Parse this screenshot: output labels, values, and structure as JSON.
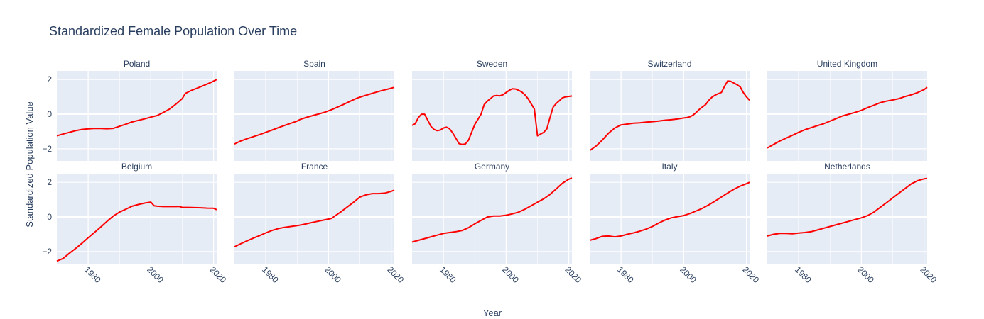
{
  "chart_data": {
    "type": "line",
    "title": "Standardized Female Population Over Time",
    "xlabel": "Year",
    "ylabel": "Standardized Population Value",
    "xlim": [
      1970,
      2021
    ],
    "ylim": [
      -2.7,
      2.5
    ],
    "x_ticks": [
      1980,
      2000,
      2020
    ],
    "y_ticks": [
      -2,
      0,
      2
    ],
    "grid": true,
    "line_color": "#ff0000",
    "plot_bg": "#e5ecf6",
    "subplots": [
      {
        "name": "Poland",
        "points": [
          [
            1970,
            -1.25
          ],
          [
            1972,
            -1.15
          ],
          [
            1974,
            -1.05
          ],
          [
            1976,
            -0.95
          ],
          [
            1978,
            -0.88
          ],
          [
            1980,
            -0.85
          ],
          [
            1982,
            -0.82
          ],
          [
            1984,
            -0.83
          ],
          [
            1986,
            -0.84
          ],
          [
            1988,
            -0.82
          ],
          [
            1990,
            -0.7
          ],
          [
            1992,
            -0.58
          ],
          [
            1994,
            -0.45
          ],
          [
            1996,
            -0.36
          ],
          [
            1998,
            -0.27
          ],
          [
            2000,
            -0.17
          ],
          [
            2002,
            -0.08
          ],
          [
            2004,
            0.1
          ],
          [
            2006,
            0.3
          ],
          [
            2008,
            0.58
          ],
          [
            2010,
            0.9
          ],
          [
            2011,
            1.2
          ],
          [
            2013,
            1.38
          ],
          [
            2015,
            1.52
          ],
          [
            2017,
            1.67
          ],
          [
            2019,
            1.82
          ],
          [
            2021,
            2.0
          ]
        ]
      },
      {
        "name": "Spain",
        "points": [
          [
            1970,
            -1.72
          ],
          [
            1972,
            -1.55
          ],
          [
            1974,
            -1.42
          ],
          [
            1976,
            -1.3
          ],
          [
            1978,
            -1.18
          ],
          [
            1980,
            -1.05
          ],
          [
            1982,
            -0.92
          ],
          [
            1984,
            -0.78
          ],
          [
            1986,
            -0.65
          ],
          [
            1988,
            -0.52
          ],
          [
            1990,
            -0.4
          ],
          [
            1991,
            -0.3
          ],
          [
            1993,
            -0.18
          ],
          [
            1995,
            -0.08
          ],
          [
            1997,
            0.02
          ],
          [
            1999,
            0.12
          ],
          [
            2001,
            0.26
          ],
          [
            2003,
            0.42
          ],
          [
            2005,
            0.58
          ],
          [
            2007,
            0.75
          ],
          [
            2009,
            0.92
          ],
          [
            2011,
            1.04
          ],
          [
            2013,
            1.15
          ],
          [
            2015,
            1.26
          ],
          [
            2017,
            1.36
          ],
          [
            2019,
            1.45
          ],
          [
            2021,
            1.55
          ]
        ]
      },
      {
        "name": "Sweden",
        "points": [
          [
            1970,
            -0.65
          ],
          [
            1971,
            -0.55
          ],
          [
            1972,
            -0.2
          ],
          [
            1973,
            0.0
          ],
          [
            1974,
            0.0
          ],
          [
            1975,
            -0.35
          ],
          [
            1976,
            -0.7
          ],
          [
            1977,
            -0.88
          ],
          [
            1978,
            -0.95
          ],
          [
            1979,
            -0.92
          ],
          [
            1980,
            -0.8
          ],
          [
            1981,
            -0.75
          ],
          [
            1982,
            -0.85
          ],
          [
            1983,
            -1.1
          ],
          [
            1984,
            -1.4
          ],
          [
            1985,
            -1.7
          ],
          [
            1986,
            -1.75
          ],
          [
            1987,
            -1.72
          ],
          [
            1988,
            -1.5
          ],
          [
            1989,
            -1.05
          ],
          [
            1990,
            -0.6
          ],
          [
            1992,
            0.0
          ],
          [
            1993,
            0.55
          ],
          [
            1994,
            0.75
          ],
          [
            1995,
            0.9
          ],
          [
            1996,
            1.05
          ],
          [
            1997,
            1.08
          ],
          [
            1998,
            1.06
          ],
          [
            1999,
            1.12
          ],
          [
            2000,
            1.25
          ],
          [
            2001,
            1.38
          ],
          [
            2002,
            1.47
          ],
          [
            2003,
            1.45
          ],
          [
            2004,
            1.38
          ],
          [
            2005,
            1.28
          ],
          [
            2006,
            1.12
          ],
          [
            2007,
            0.9
          ],
          [
            2008,
            0.6
          ],
          [
            2009,
            0.3
          ],
          [
            2010,
            -1.25
          ],
          [
            2011,
            -1.15
          ],
          [
            2012,
            -1.05
          ],
          [
            2013,
            -0.85
          ],
          [
            2014,
            -0.2
          ],
          [
            2015,
            0.4
          ],
          [
            2016,
            0.62
          ],
          [
            2017,
            0.78
          ],
          [
            2018,
            0.95
          ],
          [
            2019,
            1.0
          ],
          [
            2021,
            1.05
          ]
        ]
      },
      {
        "name": "Switzerland",
        "points": [
          [
            1970,
            -2.1
          ],
          [
            1972,
            -1.85
          ],
          [
            1974,
            -1.5
          ],
          [
            1976,
            -1.1
          ],
          [
            1978,
            -0.8
          ],
          [
            1980,
            -0.62
          ],
          [
            1982,
            -0.57
          ],
          [
            1984,
            -0.52
          ],
          [
            1986,
            -0.5
          ],
          [
            1988,
            -0.46
          ],
          [
            1990,
            -0.43
          ],
          [
            1992,
            -0.4
          ],
          [
            1994,
            -0.35
          ],
          [
            1996,
            -0.32
          ],
          [
            1998,
            -0.28
          ],
          [
            2000,
            -0.22
          ],
          [
            2001,
            -0.2
          ],
          [
            2002,
            -0.15
          ],
          [
            2003,
            -0.05
          ],
          [
            2004,
            0.1
          ],
          [
            2005,
            0.28
          ],
          [
            2006,
            0.42
          ],
          [
            2007,
            0.55
          ],
          [
            2008,
            0.8
          ],
          [
            2009,
            0.98
          ],
          [
            2010,
            1.1
          ],
          [
            2011,
            1.18
          ],
          [
            2012,
            1.25
          ],
          [
            2013,
            1.6
          ],
          [
            2014,
            1.92
          ],
          [
            2015,
            1.9
          ],
          [
            2016,
            1.8
          ],
          [
            2017,
            1.7
          ],
          [
            2018,
            1.58
          ],
          [
            2019,
            1.25
          ],
          [
            2020,
            1.0
          ],
          [
            2021,
            0.8
          ]
        ]
      },
      {
        "name": "United Kingdom",
        "points": [
          [
            1970,
            -1.95
          ],
          [
            1972,
            -1.75
          ],
          [
            1974,
            -1.55
          ],
          [
            1976,
            -1.38
          ],
          [
            1978,
            -1.22
          ],
          [
            1980,
            -1.05
          ],
          [
            1982,
            -0.9
          ],
          [
            1984,
            -0.78
          ],
          [
            1986,
            -0.66
          ],
          [
            1988,
            -0.55
          ],
          [
            1990,
            -0.4
          ],
          [
            1992,
            -0.25
          ],
          [
            1994,
            -0.1
          ],
          [
            1996,
            0.0
          ],
          [
            1998,
            0.1
          ],
          [
            2000,
            0.22
          ],
          [
            2002,
            0.38
          ],
          [
            2004,
            0.52
          ],
          [
            2006,
            0.66
          ],
          [
            2008,
            0.75
          ],
          [
            2010,
            0.82
          ],
          [
            2012,
            0.9
          ],
          [
            2014,
            1.02
          ],
          [
            2016,
            1.12
          ],
          [
            2018,
            1.25
          ],
          [
            2020,
            1.42
          ],
          [
            2021,
            1.55
          ]
        ]
      },
      {
        "name": "Belgium",
        "points": [
          [
            1970,
            -2.55
          ],
          [
            1972,
            -2.4
          ],
          [
            1974,
            -2.1
          ],
          [
            1976,
            -1.82
          ],
          [
            1978,
            -1.52
          ],
          [
            1980,
            -1.2
          ],
          [
            1982,
            -0.9
          ],
          [
            1984,
            -0.58
          ],
          [
            1986,
            -0.25
          ],
          [
            1988,
            0.05
          ],
          [
            1990,
            0.28
          ],
          [
            1992,
            0.45
          ],
          [
            1994,
            0.62
          ],
          [
            1996,
            0.72
          ],
          [
            1998,
            0.8
          ],
          [
            2000,
            0.86
          ],
          [
            2001,
            0.65
          ],
          [
            2002,
            0.62
          ],
          [
            2004,
            0.6
          ],
          [
            2006,
            0.6
          ],
          [
            2008,
            0.6
          ],
          [
            2009,
            0.61
          ],
          [
            2010,
            0.55
          ],
          [
            2012,
            0.55
          ],
          [
            2014,
            0.54
          ],
          [
            2016,
            0.53
          ],
          [
            2018,
            0.51
          ],
          [
            2020,
            0.5
          ],
          [
            2021,
            0.42
          ]
        ]
      },
      {
        "name": "France",
        "points": [
          [
            1970,
            -1.72
          ],
          [
            1972,
            -1.55
          ],
          [
            1974,
            -1.38
          ],
          [
            1976,
            -1.22
          ],
          [
            1978,
            -1.08
          ],
          [
            1980,
            -0.92
          ],
          [
            1982,
            -0.78
          ],
          [
            1984,
            -0.67
          ],
          [
            1986,
            -0.6
          ],
          [
            1988,
            -0.55
          ],
          [
            1990,
            -0.5
          ],
          [
            1992,
            -0.43
          ],
          [
            1994,
            -0.35
          ],
          [
            1996,
            -0.27
          ],
          [
            1998,
            -0.2
          ],
          [
            2000,
            -0.12
          ],
          [
            2001,
            -0.08
          ],
          [
            2002,
            0.05
          ],
          [
            2004,
            0.3
          ],
          [
            2006,
            0.58
          ],
          [
            2008,
            0.85
          ],
          [
            2010,
            1.15
          ],
          [
            2012,
            1.28
          ],
          [
            2014,
            1.35
          ],
          [
            2016,
            1.35
          ],
          [
            2018,
            1.38
          ],
          [
            2020,
            1.48
          ],
          [
            2021,
            1.55
          ]
        ]
      },
      {
        "name": "Germany",
        "points": [
          [
            1970,
            -1.45
          ],
          [
            1972,
            -1.35
          ],
          [
            1974,
            -1.25
          ],
          [
            1976,
            -1.15
          ],
          [
            1978,
            -1.05
          ],
          [
            1980,
            -0.95
          ],
          [
            1982,
            -0.9
          ],
          [
            1984,
            -0.85
          ],
          [
            1986,
            -0.78
          ],
          [
            1988,
            -0.62
          ],
          [
            1990,
            -0.4
          ],
          [
            1992,
            -0.2
          ],
          [
            1994,
            0.0
          ],
          [
            1996,
            0.05
          ],
          [
            1998,
            0.05
          ],
          [
            2000,
            0.1
          ],
          [
            2002,
            0.18
          ],
          [
            2004,
            0.28
          ],
          [
            2006,
            0.45
          ],
          [
            2008,
            0.65
          ],
          [
            2010,
            0.85
          ],
          [
            2012,
            1.05
          ],
          [
            2014,
            1.3
          ],
          [
            2016,
            1.62
          ],
          [
            2018,
            1.95
          ],
          [
            2020,
            2.18
          ],
          [
            2021,
            2.25
          ]
        ]
      },
      {
        "name": "Italy",
        "points": [
          [
            1970,
            -1.35
          ],
          [
            1972,
            -1.25
          ],
          [
            1974,
            -1.12
          ],
          [
            1976,
            -1.1
          ],
          [
            1978,
            -1.15
          ],
          [
            1980,
            -1.1
          ],
          [
            1982,
            -1.0
          ],
          [
            1984,
            -0.92
          ],
          [
            1986,
            -0.82
          ],
          [
            1988,
            -0.7
          ],
          [
            1990,
            -0.55
          ],
          [
            1992,
            -0.35
          ],
          [
            1994,
            -0.18
          ],
          [
            1996,
            -0.05
          ],
          [
            1998,
            0.02
          ],
          [
            2000,
            0.08
          ],
          [
            2002,
            0.2
          ],
          [
            2004,
            0.35
          ],
          [
            2006,
            0.5
          ],
          [
            2008,
            0.7
          ],
          [
            2010,
            0.92
          ],
          [
            2012,
            1.15
          ],
          [
            2014,
            1.38
          ],
          [
            2016,
            1.6
          ],
          [
            2018,
            1.78
          ],
          [
            2020,
            1.92
          ],
          [
            2021,
            2.0
          ]
        ]
      },
      {
        "name": "Netherlands",
        "points": [
          [
            1970,
            -1.1
          ],
          [
            1972,
            -1.0
          ],
          [
            1974,
            -0.95
          ],
          [
            1976,
            -0.95
          ],
          [
            1978,
            -0.97
          ],
          [
            1980,
            -0.93
          ],
          [
            1982,
            -0.9
          ],
          [
            1984,
            -0.85
          ],
          [
            1986,
            -0.75
          ],
          [
            1988,
            -0.65
          ],
          [
            1990,
            -0.55
          ],
          [
            1992,
            -0.45
          ],
          [
            1994,
            -0.35
          ],
          [
            1996,
            -0.25
          ],
          [
            1998,
            -0.15
          ],
          [
            2000,
            -0.05
          ],
          [
            2002,
            0.08
          ],
          [
            2004,
            0.28
          ],
          [
            2006,
            0.55
          ],
          [
            2008,
            0.82
          ],
          [
            2010,
            1.1
          ],
          [
            2012,
            1.38
          ],
          [
            2014,
            1.65
          ],
          [
            2016,
            1.92
          ],
          [
            2018,
            2.1
          ],
          [
            2020,
            2.2
          ],
          [
            2021,
            2.22
          ]
        ]
      }
    ]
  }
}
